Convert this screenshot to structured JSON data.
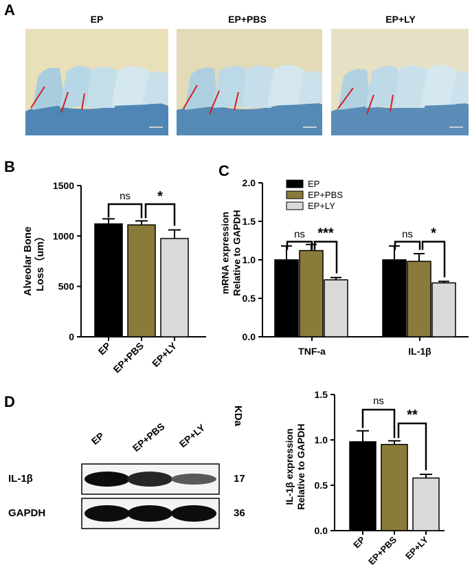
{
  "panels": {
    "a": {
      "letter": "A",
      "photos": [
        {
          "title": "EP",
          "bg": "#e9dfb8"
        },
        {
          "title": "EP+PBS",
          "bg": "#e3dab7"
        },
        {
          "title": "EP+LY",
          "bg": "#e6e1c4"
        }
      ]
    },
    "b": {
      "letter": "B"
    },
    "c": {
      "letter": "C"
    },
    "d": {
      "letter": "D",
      "western_blot": {
        "lanes": [
          "EP",
          "EP+PBS",
          "EP+LY"
        ],
        "unit_label": "KDa",
        "rows": [
          {
            "label": "IL-1β",
            "kda": "17",
            "intensities": [
              0.95,
              0.85,
              0.65
            ]
          },
          {
            "label": "GAPDH",
            "kda": "36",
            "intensities": [
              0.95,
              0.95,
              0.95
            ]
          }
        ]
      }
    }
  },
  "colors": {
    "EP": "#000000",
    "EP+PBS": "#8b7b3a",
    "EP+LY": "#d9d9d9"
  },
  "chart_data": [
    {
      "id": "B",
      "type": "bar",
      "categories": [
        "EP",
        "EP+PBS",
        "EP+LY"
      ],
      "values": [
        1120,
        1110,
        975
      ],
      "errors": [
        50,
        40,
        85
      ],
      "ylabel": "Alveolar Bone Loss（um）",
      "ylim": [
        0,
        1500
      ],
      "yticks": [
        0,
        500,
        1000,
        1500
      ],
      "significance": [
        {
          "from": 0,
          "to": 1,
          "label": "ns"
        },
        {
          "from": 1,
          "to": 2,
          "label": "*"
        }
      ]
    },
    {
      "id": "C",
      "type": "bar",
      "categories": [
        "TNF-a",
        "IL-1β"
      ],
      "series": [
        {
          "name": "EP",
          "values": [
            1.0,
            1.0
          ],
          "errors": [
            0.18,
            0.18
          ]
        },
        {
          "name": "EP+PBS",
          "values": [
            1.12,
            0.98
          ],
          "errors": [
            0.08,
            0.1
          ]
        },
        {
          "name": "EP+LY",
          "values": [
            0.74,
            0.7
          ],
          "errors": [
            0.03,
            0.02
          ]
        }
      ],
      "ylabel": "mRNA expression Relative to GAPDH",
      "ylim": [
        0,
        2.0
      ],
      "yticks": [
        "0.0",
        "0.5",
        "1.0",
        "1.5",
        "2.0"
      ],
      "legend": "top-left",
      "significance": [
        {
          "category": 0,
          "from": 0,
          "to": 1,
          "label": "ns"
        },
        {
          "category": 0,
          "from": 1,
          "to": 2,
          "label": "***"
        },
        {
          "category": 1,
          "from": 0,
          "to": 1,
          "label": "ns"
        },
        {
          "category": 1,
          "from": 1,
          "to": 2,
          "label": "*"
        }
      ]
    },
    {
      "id": "D",
      "type": "bar",
      "categories": [
        "EP",
        "EP+PBS",
        "EP+LY"
      ],
      "values": [
        0.98,
        0.95,
        0.58
      ],
      "errors": [
        0.12,
        0.04,
        0.04
      ],
      "ylabel": "IL-1β expression Relative to GAPDH",
      "ylim": [
        0,
        1.5
      ],
      "yticks": [
        "0.0",
        "0.5",
        "1.0",
        "1.5"
      ],
      "significance": [
        {
          "from": 0,
          "to": 1,
          "label": "ns"
        },
        {
          "from": 1,
          "to": 2,
          "label": "**"
        }
      ]
    }
  ]
}
